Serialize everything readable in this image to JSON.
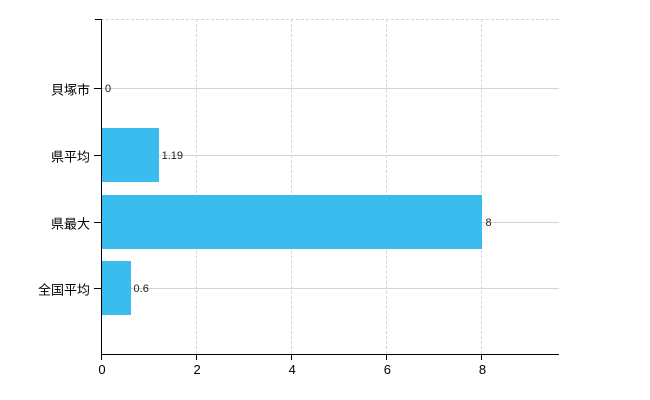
{
  "chart_data": {
    "type": "bar",
    "orientation": "horizontal",
    "title": "",
    "xlabel": "",
    "ylabel": "",
    "categories": [
      "貝塚市",
      "県平均",
      "県最大",
      "全国平均"
    ],
    "values": [
      0,
      1.19,
      8,
      0.6
    ],
    "value_labels": [
      "0",
      "1.19",
      "8",
      "0.6"
    ],
    "x_ticks": [
      0,
      2,
      4,
      6,
      8
    ],
    "x_tick_labels": [
      "0",
      "2",
      "4",
      "6",
      "8"
    ],
    "xlim": [
      0,
      9.63
    ],
    "grid": true,
    "legend": false,
    "colors": {
      "bar": "#3abdee",
      "axis": "#000000",
      "hgrid": "#cfd8cf",
      "vgrid": "#d8d2da",
      "text": "#000000"
    }
  }
}
